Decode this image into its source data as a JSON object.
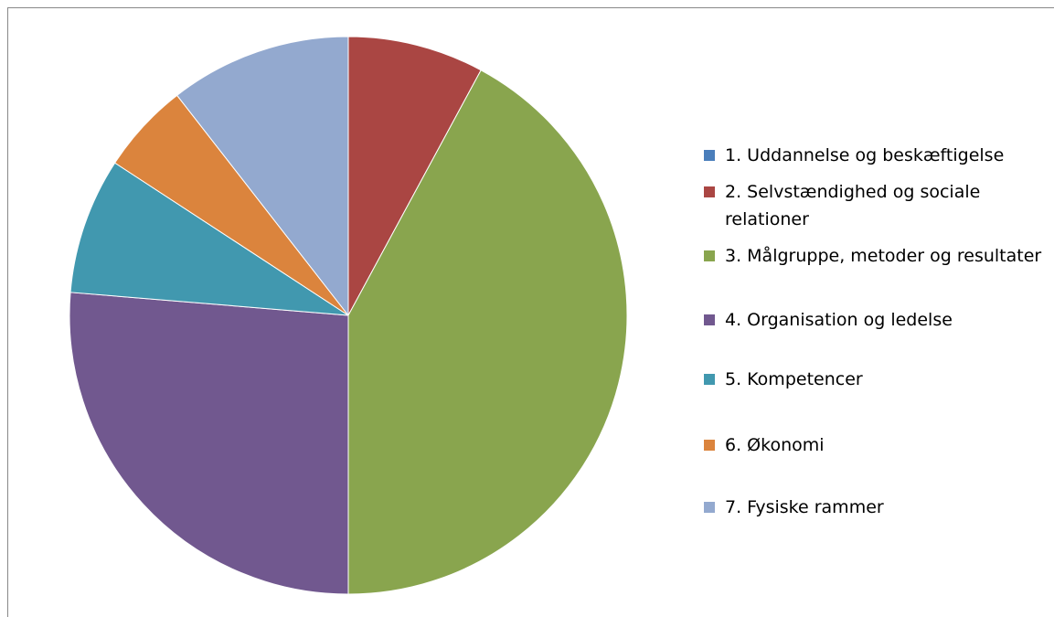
{
  "chart_data": {
    "type": "pie",
    "categories": [
      "1. Uddannelse og beskæftigelse",
      "2. Selvstændighed og sociale relationer",
      "3. Målgruppe, metoder og resultater",
      "4. Organisation og ledelse",
      "5. Kompetencer",
      "6. Økonomi",
      "7. Fysiske rammer"
    ],
    "values": [
      0,
      3,
      16,
      10,
      3,
      2,
      4
    ],
    "colors": [
      "#4a7ebb",
      "#aa4643",
      "#89a54e",
      "#71588f",
      "#4198af",
      "#db843d",
      "#93a9cf"
    ],
    "legend": "right"
  }
}
